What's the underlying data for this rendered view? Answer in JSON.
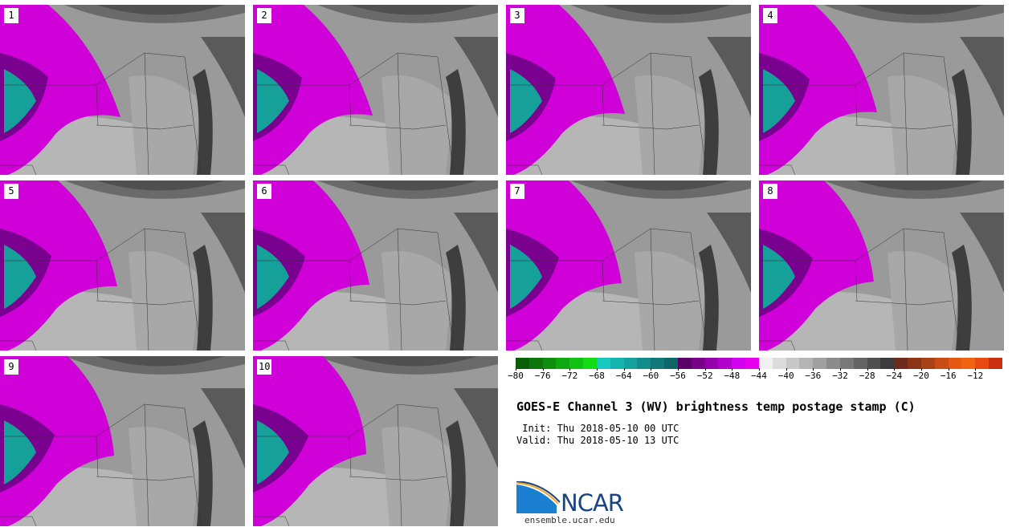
{
  "panels": [
    {
      "label": "1"
    },
    {
      "label": "2"
    },
    {
      "label": "3"
    },
    {
      "label": "4"
    },
    {
      "label": "5"
    },
    {
      "label": "6"
    },
    {
      "label": "7"
    },
    {
      "label": "8"
    },
    {
      "label": "9"
    },
    {
      "label": "10"
    }
  ],
  "colorbar": {
    "ticks": [
      "−80",
      "−76",
      "−72",
      "−68",
      "−64",
      "−60",
      "−56",
      "−52",
      "−48",
      "−44",
      "−40",
      "−36",
      "−32",
      "−28",
      "−24",
      "−20",
      "−16",
      "−12"
    ],
    "colors": [
      "#0a5e0a",
      "#0c760c",
      "#0e8e0e",
      "#10a810",
      "#12c212",
      "#14dc14",
      "#18c8c0",
      "#16b4ae",
      "#14a09c",
      "#128c8a",
      "#107878",
      "#0e6666",
      "#5a0066",
      "#780088",
      "#9600aa",
      "#b400cc",
      "#d200ee",
      "#e600f0",
      "#f0f0f0",
      "#dcdcdc",
      "#c8c8c8",
      "#b4b4b4",
      "#a0a0a0",
      "#8c8c8c",
      "#787878",
      "#646464",
      "#505050",
      "#3c3c3c",
      "#6e2a1a",
      "#8c3418",
      "#aa4016",
      "#c84c14",
      "#e65812",
      "#f06410",
      "#e64a10",
      "#c83010"
    ]
  },
  "title": "GOES-E Channel 3 (WV) brightness temp postage stamp (C)",
  "init": " Init: Thu 2018-05-10 00 UTC",
  "valid": "Valid: Thu 2018-05-10 13 UTC",
  "logo": {
    "name": "NCAR",
    "url": "ensemble.ucar.edu"
  }
}
